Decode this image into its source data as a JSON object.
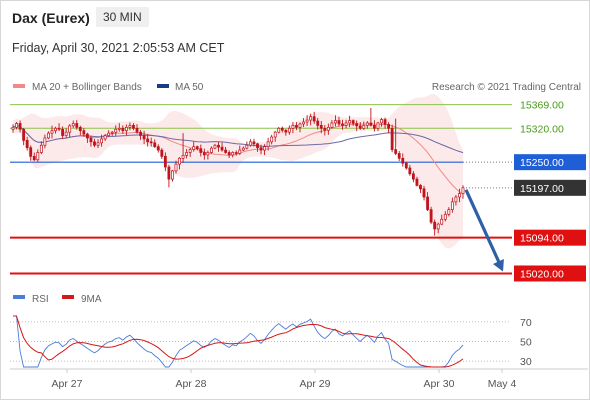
{
  "header": {
    "title": "Dax (Eurex)",
    "interval": "30 MIN",
    "datetime": "Friday, April 30, 2021 2:05:53 AM CET"
  },
  "legend": {
    "ma20": "MA 20 + Bollinger Bands",
    "ma50": "MA 50",
    "credit": "Research © 2021 Trading Central",
    "rsi": "RSI",
    "rsi_ma": "9MA"
  },
  "colors": {
    "support": "#e01010",
    "pivot": "#1e5fd8",
    "resistance": "#8bc34a",
    "last": "#333333",
    "arrow": "#2f5fa8",
    "candle": "#c0141d",
    "ma20": "#f08a8a",
    "ma50": "#6a6aa8",
    "rsi": "#4a7ddb",
    "rsi_ma": "#d61818"
  },
  "chart_data": [
    {
      "type": "candlestick",
      "title": "Dax (Eurex) 30 MIN",
      "ylim": [
        14990,
        15395
      ],
      "x_labels": [
        "Apr 27",
        "Apr 28",
        "Apr 29",
        "Apr 30",
        "May 4"
      ],
      "levels": [
        {
          "value": 15369.0,
          "label": "15369.00",
          "kind": "resistance"
        },
        {
          "value": 15320.0,
          "label": "15320.00",
          "kind": "resistance"
        },
        {
          "value": 15250.0,
          "label": "15250.00",
          "kind": "pivot"
        },
        {
          "value": 15197.0,
          "label": "15197.00",
          "kind": "last"
        },
        {
          "value": 15094.0,
          "label": "15094.00",
          "kind": "support"
        },
        {
          "value": 15020.0,
          "label": "15020.00",
          "kind": "support"
        }
      ],
      "close": [
        15322,
        15330,
        15318,
        15295,
        15280,
        15262,
        15255,
        15270,
        15285,
        15300,
        15310,
        15315,
        15320,
        15318,
        15305,
        15312,
        15325,
        15330,
        15322,
        15315,
        15308,
        15300,
        15292,
        15285,
        15290,
        15298,
        15305,
        15310,
        15312,
        15318,
        15320,
        15315,
        15322,
        15326,
        15320,
        15312,
        15305,
        15298,
        15292,
        15290,
        15282,
        15275,
        15262,
        15240,
        15215,
        15232,
        15246,
        15258,
        15264,
        15270,
        15276,
        15282,
        15278,
        15270,
        15265,
        15270,
        15279,
        15285,
        15281,
        15275,
        15270,
        15265,
        15270,
        15268,
        15275,
        15279,
        15285,
        15292,
        15288,
        15280,
        15275,
        15282,
        15292,
        15302,
        15312,
        15320,
        15316,
        15312,
        15320,
        15326,
        15322,
        15329,
        15333,
        15337,
        15344,
        15335,
        15326,
        15320,
        15316,
        15322,
        15331,
        15336,
        15329,
        15326,
        15331,
        15336,
        15330,
        15325,
        15320,
        15326,
        15331,
        15326,
        15320,
        15331,
        15338,
        15328,
        15320,
        15276,
        15268,
        15258,
        15248,
        15238,
        15226,
        15215,
        15202,
        15195,
        15178,
        15152,
        15126,
        15112,
        15122,
        15132,
        15142,
        15152,
        15168,
        15178,
        15185,
        15197
      ],
      "ma20_last": 15209,
      "ma50_last": 15255,
      "bollinger": {
        "upper_last": 15265,
        "lower_last": 15101
      }
    },
    {
      "type": "line",
      "title": "RSI",
      "ylim": [
        22,
        78
      ],
      "y_ticks": [
        70,
        50,
        30
      ],
      "series": [
        {
          "name": "RSI"
        },
        {
          "name": "9MA"
        }
      ]
    }
  ]
}
